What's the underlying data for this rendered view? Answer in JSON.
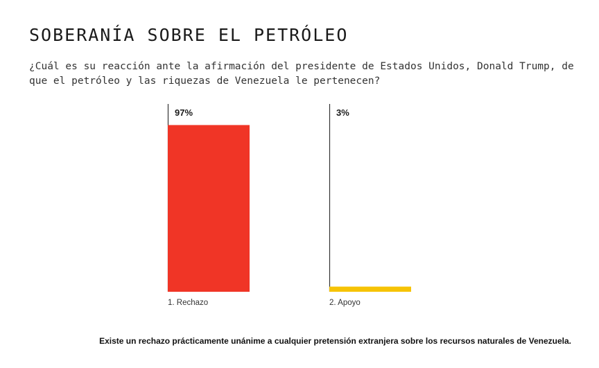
{
  "title": "SOBERANÍA SOBRE EL PETRÓLEO",
  "subtitle": "¿Cuál es su reacción ante la afirmación del presidente de Estados Unidos, Donald Trump, de que el petróleo y las riquezas de Venezuela le pertenecen?",
  "footnote": "Existe un rechazo prácticamente unánime a cualquier pretensión extranjera sobre los recursos naturales de Venezuela.",
  "colors": {
    "rechazo": "#f03526",
    "apoyo": "#f6c305",
    "axis": "#333333"
  },
  "chart_data": {
    "type": "bar",
    "categories": [
      "1. Rechazo",
      "2. Apoyo"
    ],
    "values": [
      97,
      3
    ],
    "value_labels": [
      "97%",
      "3%"
    ],
    "ylim": [
      0,
      100
    ],
    "grid": false,
    "legend": "none"
  }
}
